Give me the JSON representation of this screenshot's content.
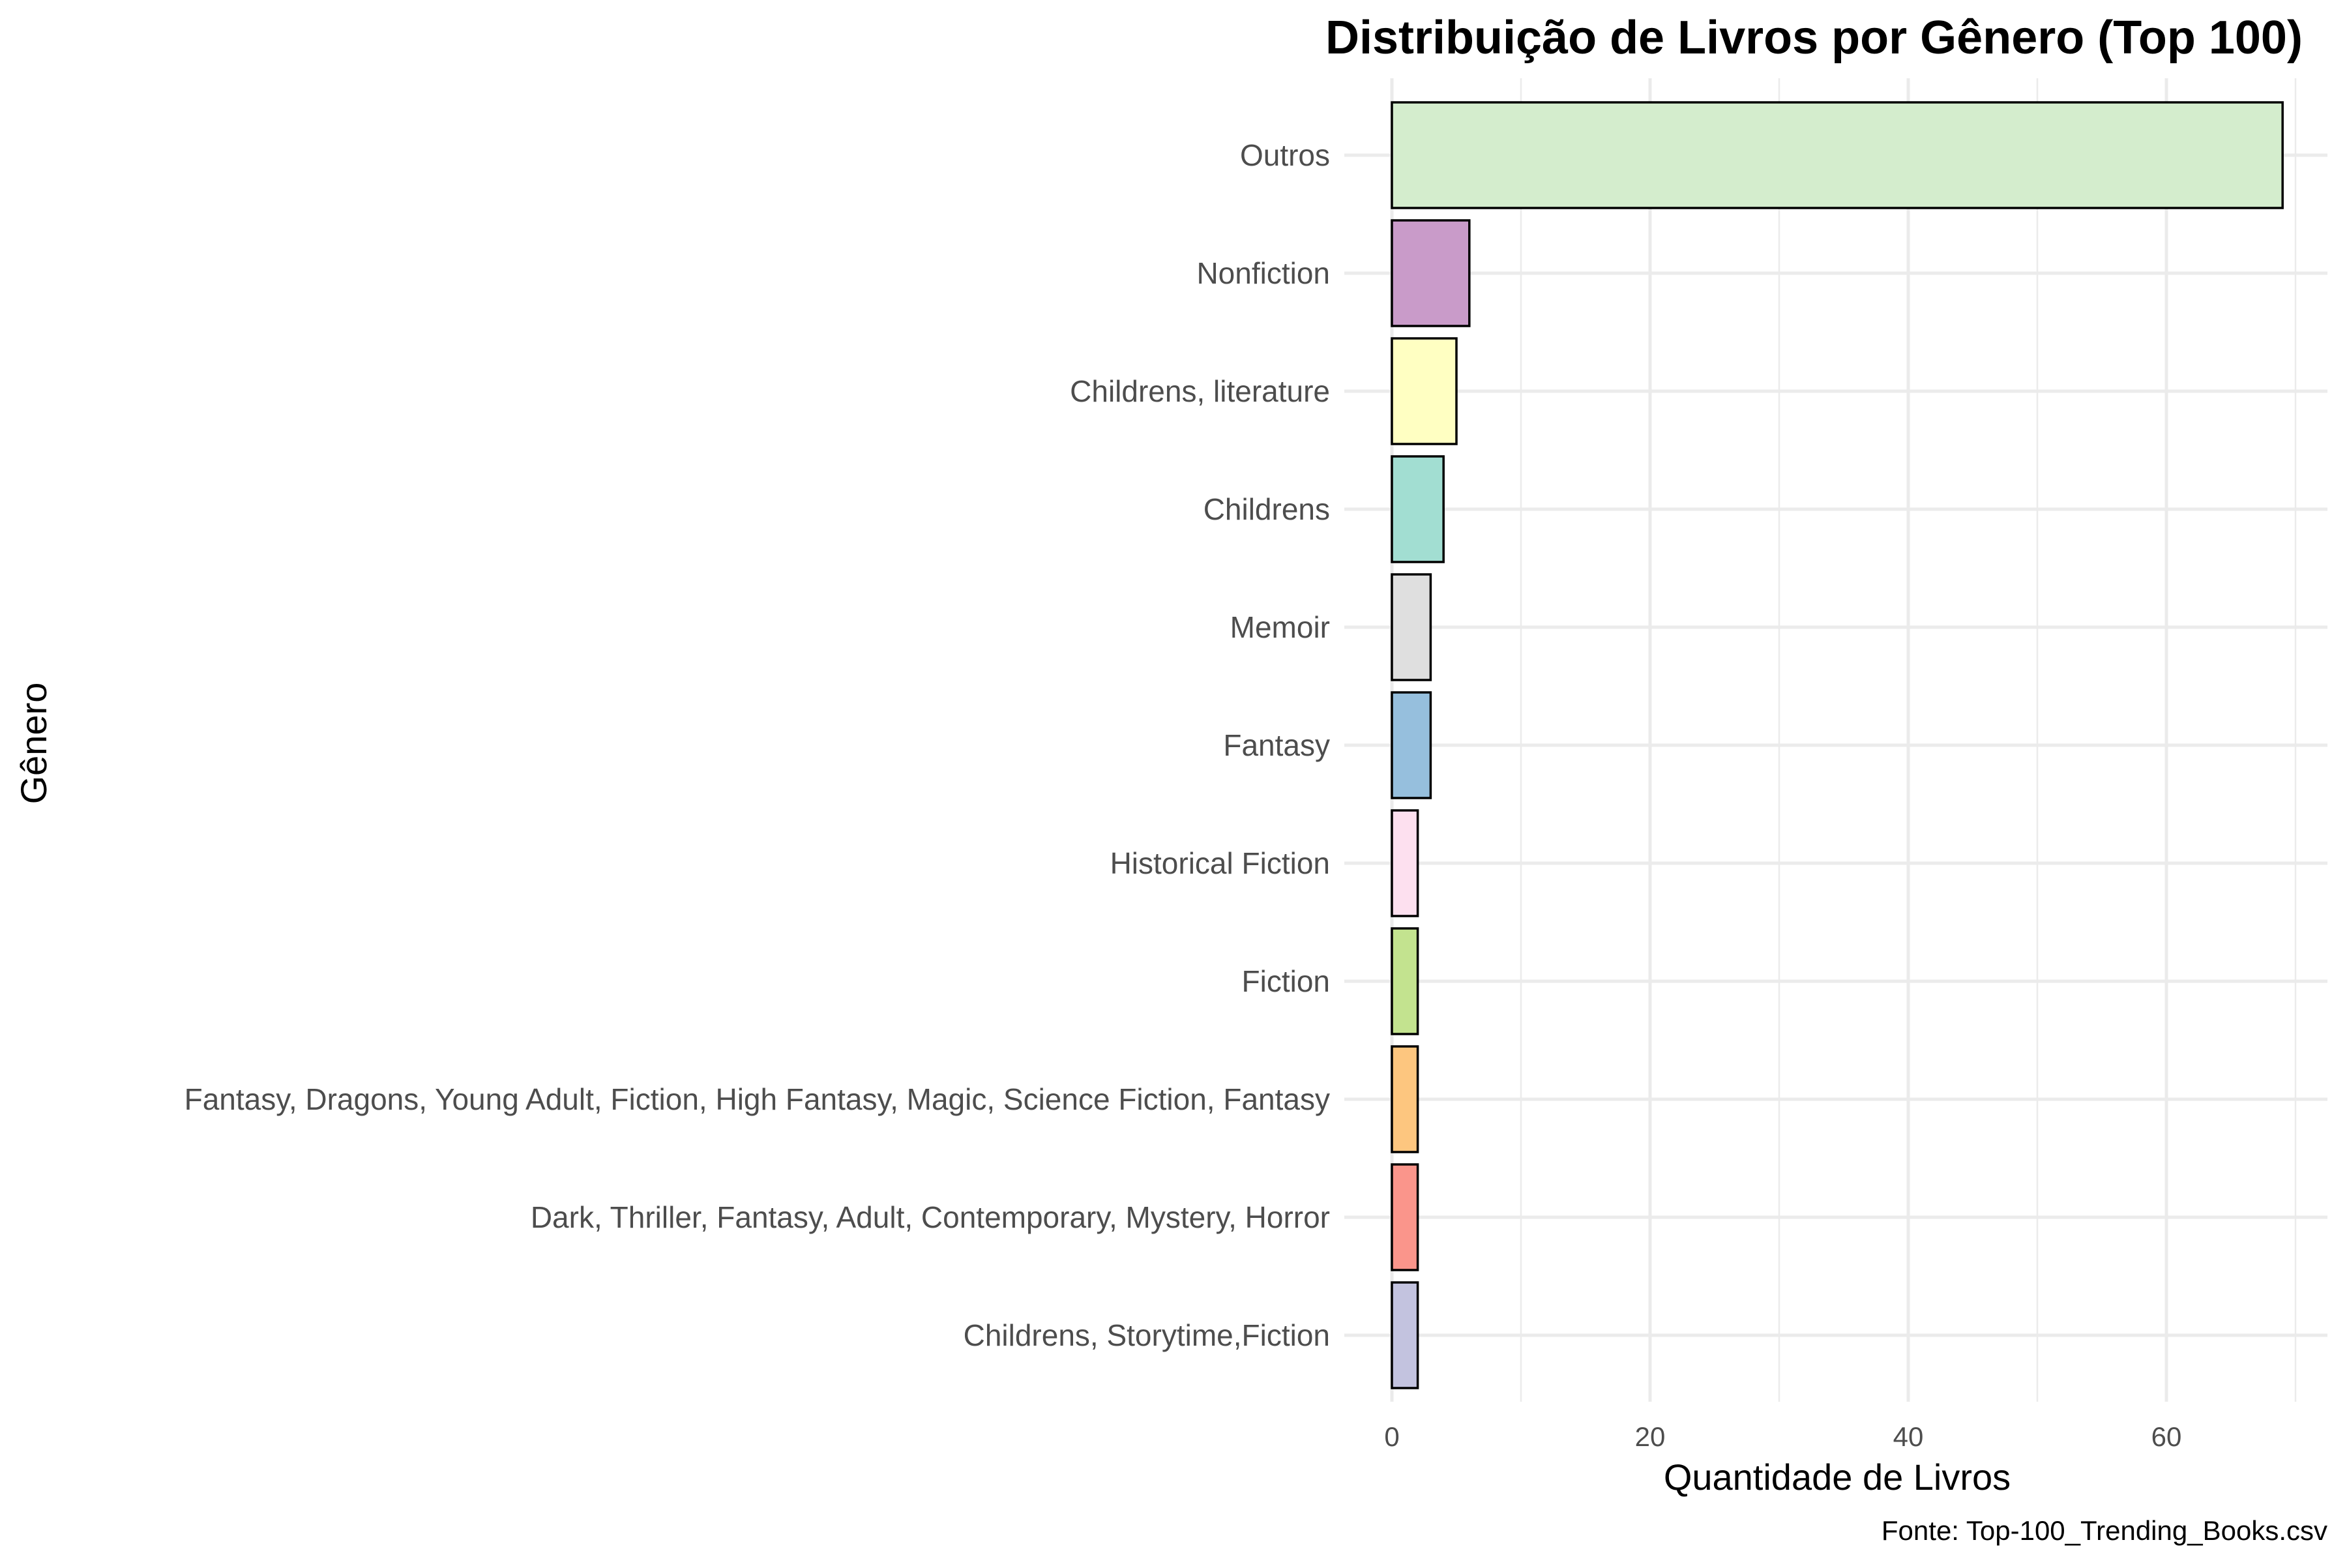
{
  "chart_data": {
    "type": "bar",
    "orientation": "horizontal",
    "title": "Distribuição de Livros por Gênero (Top 100)",
    "xlabel": "Quantidade de Livros",
    "ylabel": "Gênero",
    "caption": "Fonte: Top-100_Trending_Books.csv",
    "xlim": [
      0,
      72.5
    ],
    "x_ticks": [
      0,
      20,
      40,
      60
    ],
    "x_tick_labels": [
      "0",
      "20",
      "40",
      "60"
    ],
    "grid": true,
    "legend": "none",
    "categories": [
      "Outros",
      "Nonfiction",
      "Childrens, literature",
      "Childrens",
      "Memoir",
      "Fantasy",
      "Historical Fiction",
      "Fiction",
      "Fantasy, Dragons, Young Adult, Fiction, High Fantasy, Magic, Science Fiction, Fantasy",
      "Dark, Thriller, Fantasy, Adult, Contemporary, Mystery, Horror",
      "Childrens, Storytime,Fiction"
    ],
    "values": [
      69,
      6,
      5,
      4,
      3,
      3,
      2,
      2,
      2,
      2,
      2
    ],
    "colors": [
      "#d4edcd",
      "#c99bc9",
      "#ffffc2",
      "#a2ded2",
      "#dfdfdf",
      "#96bfdd",
      "#fde0ef",
      "#c3e38f",
      "#fdc67f",
      "#fa958b",
      "#c3c3df"
    ]
  }
}
